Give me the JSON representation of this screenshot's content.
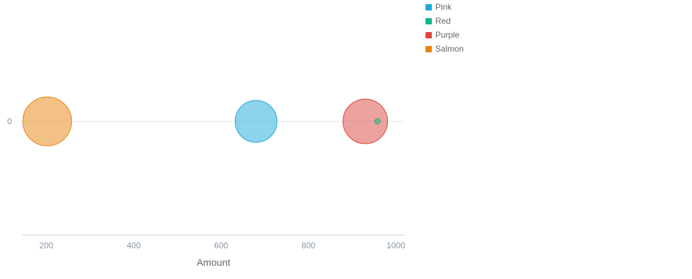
{
  "chart_data": {
    "type": "scatter",
    "title": "",
    "xlabel": "Amount",
    "ylabel": "",
    "xlim": [
      145,
      1020
    ],
    "x_ticks": [
      200,
      400,
      600,
      800,
      1000
    ],
    "y_ticks": [
      0
    ],
    "legend_position": "top-right",
    "series": [
      {
        "name": "Pink",
        "color": "#1aa8d8",
        "points": [
          {
            "x": 680,
            "y": 0,
            "size": 30
          }
        ]
      },
      {
        "name": "Red",
        "color": "#13b58a",
        "points": [
          {
            "x": 958,
            "y": 0,
            "size": 4
          }
        ]
      },
      {
        "name": "Purple",
        "color": "#d9453d",
        "points": [
          {
            "x": 930,
            "y": 0,
            "size": 32
          }
        ]
      },
      {
        "name": "Salmon",
        "color": "#e8830e",
        "points": [
          {
            "x": 202,
            "y": 0,
            "size": 35
          }
        ]
      }
    ]
  }
}
